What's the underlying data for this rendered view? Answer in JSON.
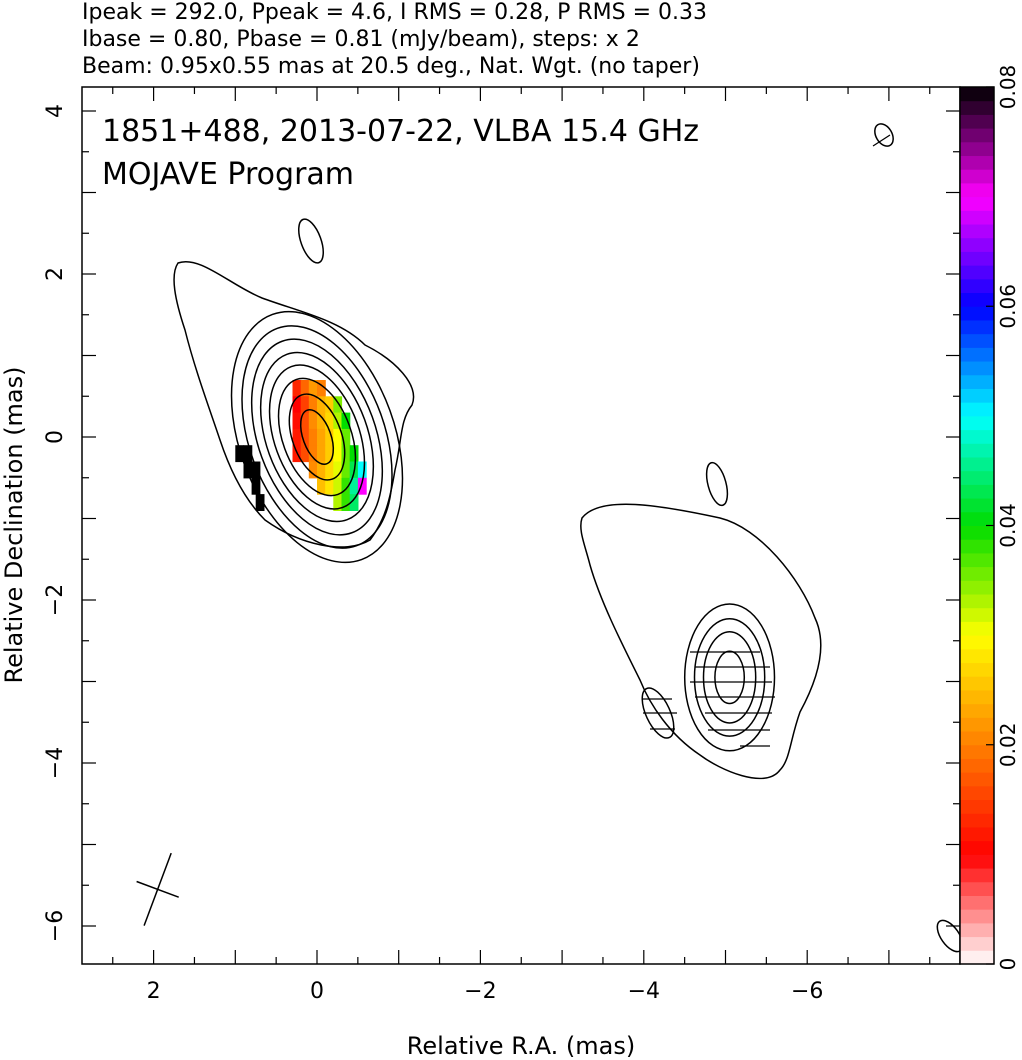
{
  "header": {
    "line1": "Ipeak = 292.0, Ppeak = 4.6, I RMS = 0.28, P RMS = 0.33",
    "line2": "Ibase = 0.80, Pbase = 0.81 (mJy/beam), steps: x 2",
    "line3": "Beam: 0.95x0.55 mas at 20.5 deg., Nat. Wgt. (no taper)"
  },
  "annotations": {
    "source": "1851+488, 2013-07-22, VLBA 15.4 GHz",
    "program": "MOJAVE Program"
  },
  "chart_data": {
    "type": "heatmap",
    "xlabel": "Relative R.A. (mas)",
    "ylabel": "Relative Declination (mas)",
    "xlim": [
      2.9,
      -8.0
    ],
    "ylim": [
      -6.5,
      4.3
    ],
    "xticks": [
      2,
      0,
      -2,
      -4,
      -6
    ],
    "yticks": [
      4,
      2,
      0,
      -2,
      -4,
      -6
    ],
    "xtick_labels": [
      "2",
      "0",
      "−2",
      "−4",
      "−6"
    ],
    "ytick_labels": [
      "4",
      "2",
      "0",
      "−2",
      "−4",
      "−6"
    ],
    "colorbar": {
      "range": [
        0,
        0.08
      ],
      "ticks": [
        0,
        0.02,
        0.04,
        0.06,
        0.08
      ],
      "tick_labels": [
        "0",
        "0.02",
        "0.04",
        "0.06",
        "0.08"
      ],
      "colors": [
        "#ffffff",
        "#ff0000",
        "#ff7f00",
        "#ffff00",
        "#00dd00",
        "#00ffff",
        "#0000ff",
        "#ff00ff",
        "#000000"
      ]
    },
    "core": {
      "center": [
        0.0,
        0.0
      ],
      "contour_semi_axes_mas": [
        [
          0.17,
          0.35
        ],
        [
          0.3,
          0.55
        ],
        [
          0.42,
          0.75
        ],
        [
          0.52,
          0.92
        ],
        [
          0.62,
          1.08
        ],
        [
          0.72,
          1.25
        ],
        [
          0.83,
          1.42
        ],
        [
          0.95,
          1.6
        ]
      ],
      "position_angle_deg": 20
    },
    "jet_component": {
      "center": [
        -5.05,
        -2.95
      ],
      "contour_semi_axes_mas": [
        [
          0.18,
          0.32
        ],
        [
          0.32,
          0.56
        ],
        [
          0.43,
          0.72
        ],
        [
          0.55,
          0.9
        ]
      ]
    },
    "beam": {
      "major_mas": 0.95,
      "minor_mas": 0.55,
      "pa_deg": 20.5,
      "center": [
        1.95,
        -5.55
      ]
    },
    "polarization_pixels": [
      {
        "x": 0.25,
        "y": 0.6,
        "v": 0.013
      },
      {
        "x": 0.15,
        "y": 0.6,
        "v": 0.018
      },
      {
        "x": 0.05,
        "y": 0.6,
        "v": 0.022
      },
      {
        "x": -0.05,
        "y": 0.6,
        "v": 0.02
      },
      {
        "x": 0.25,
        "y": 0.4,
        "v": 0.01
      },
      {
        "x": 0.15,
        "y": 0.4,
        "v": 0.015
      },
      {
        "x": 0.05,
        "y": 0.4,
        "v": 0.02
      },
      {
        "x": -0.05,
        "y": 0.4,
        "v": 0.024
      },
      {
        "x": -0.15,
        "y": 0.4,
        "v": 0.026
      },
      {
        "x": -0.25,
        "y": 0.4,
        "v": 0.035
      },
      {
        "x": 0.25,
        "y": 0.2,
        "v": 0.011
      },
      {
        "x": 0.15,
        "y": 0.2,
        "v": 0.016
      },
      {
        "x": 0.05,
        "y": 0.2,
        "v": 0.021
      },
      {
        "x": -0.05,
        "y": 0.2,
        "v": 0.024
      },
      {
        "x": -0.15,
        "y": 0.2,
        "v": 0.027
      },
      {
        "x": -0.25,
        "y": 0.2,
        "v": 0.033
      },
      {
        "x": -0.35,
        "y": 0.2,
        "v": 0.04
      },
      {
        "x": 0.25,
        "y": 0.0,
        "v": 0.012
      },
      {
        "x": 0.15,
        "y": 0.0,
        "v": 0.016
      },
      {
        "x": 0.05,
        "y": 0.0,
        "v": 0.02
      },
      {
        "x": -0.05,
        "y": 0.0,
        "v": 0.023
      },
      {
        "x": -0.15,
        "y": 0.0,
        "v": 0.026
      },
      {
        "x": -0.25,
        "y": 0.0,
        "v": 0.03
      },
      {
        "x": -0.35,
        "y": 0.0,
        "v": 0.036
      },
      {
        "x": 0.25,
        "y": -0.2,
        "v": 0.012
      },
      {
        "x": 0.15,
        "y": -0.2,
        "v": 0.016
      },
      {
        "x": 0.05,
        "y": -0.2,
        "v": 0.02
      },
      {
        "x": -0.05,
        "y": -0.2,
        "v": 0.023
      },
      {
        "x": -0.15,
        "y": -0.2,
        "v": 0.026
      },
      {
        "x": -0.25,
        "y": -0.2,
        "v": 0.03
      },
      {
        "x": -0.35,
        "y": -0.2,
        "v": 0.036
      },
      {
        "x": -0.45,
        "y": -0.2,
        "v": 0.04
      },
      {
        "x": 0.05,
        "y": -0.4,
        "v": 0.021
      },
      {
        "x": -0.05,
        "y": -0.4,
        "v": 0.024
      },
      {
        "x": -0.15,
        "y": -0.4,
        "v": 0.027
      },
      {
        "x": -0.25,
        "y": -0.4,
        "v": 0.031
      },
      {
        "x": -0.35,
        "y": -0.4,
        "v": 0.036
      },
      {
        "x": -0.45,
        "y": -0.4,
        "v": 0.043
      },
      {
        "x": -0.55,
        "y": -0.4,
        "v": 0.05
      },
      {
        "x": -0.05,
        "y": -0.6,
        "v": 0.025
      },
      {
        "x": -0.15,
        "y": -0.6,
        "v": 0.028
      },
      {
        "x": -0.25,
        "y": -0.6,
        "v": 0.032
      },
      {
        "x": -0.35,
        "y": -0.6,
        "v": 0.038
      },
      {
        "x": -0.45,
        "y": -0.6,
        "v": 0.046
      },
      {
        "x": -0.55,
        "y": -0.6,
        "v": 0.07
      },
      {
        "x": -0.25,
        "y": -0.8,
        "v": 0.033
      },
      {
        "x": -0.35,
        "y": -0.8,
        "v": 0.038
      },
      {
        "x": -0.45,
        "y": -0.8,
        "v": 0.044
      },
      {
        "x": 0.95,
        "y": -0.2,
        "v": 0.08
      },
      {
        "x": 0.85,
        "y": -0.2,
        "v": 0.08
      },
      {
        "x": 0.85,
        "y": -0.4,
        "v": 0.08
      },
      {
        "x": 0.75,
        "y": -0.4,
        "v": 0.08
      },
      {
        "x": 0.75,
        "y": -0.6,
        "v": 0.08
      },
      {
        "x": 0.7,
        "y": -0.8,
        "v": 0.08
      }
    ]
  }
}
